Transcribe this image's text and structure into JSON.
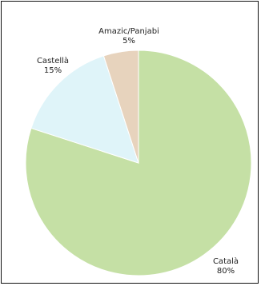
{
  "chart_data": {
    "type": "pie",
    "title": "",
    "categories": [
      "Català",
      "Castellà",
      "Amazic/Panjabi"
    ],
    "values": [
      80,
      15,
      5
    ],
    "value_labels": [
      "80%",
      "15%",
      "5%"
    ],
    "colors": [
      "#c5e0a5",
      "#dff4f9",
      "#e7d3bd"
    ],
    "start": "top, clockwise",
    "legend": "none",
    "labels_placement": "outside"
  }
}
